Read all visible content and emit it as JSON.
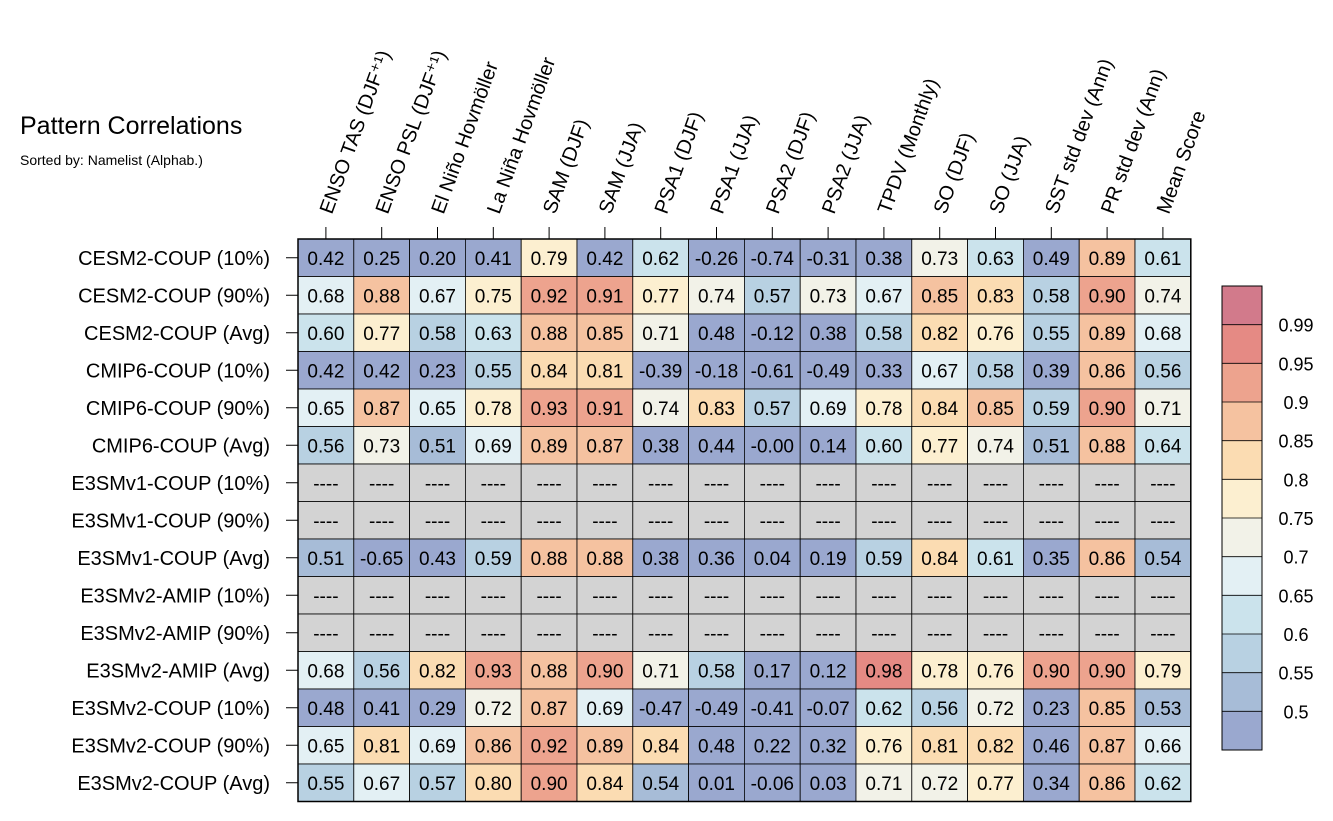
{
  "chart_data": {
    "type": "heatmap",
    "title": "Pattern Correlations",
    "subtitle": "Sorted by: Namelist (Alphab.)",
    "columns": [
      "ENSO TAS (DJF⁺¹)",
      "ENSO PSL (DJF⁺¹)",
      "El Niño Hovmöller",
      "La Niña Hovmöller",
      "SAM (DJF)",
      "SAM (JJA)",
      "PSA1 (DJF)",
      "PSA1 (JJA)",
      "PSA2 (DJF)",
      "PSA2 (JJA)",
      "TPDV (Monthly)",
      "SO (DJF)",
      "SO (JJA)",
      "SST std dev (Ann)",
      "PR std dev (Ann)",
      "Mean Score"
    ],
    "rows": [
      "CESM2-COUP (10%)",
      "CESM2-COUP (90%)",
      "CESM2-COUP (Avg)",
      "CMIP6-COUP (10%)",
      "CMIP6-COUP (90%)",
      "CMIP6-COUP (Avg)",
      "E3SMv1-COUP (10%)",
      "E3SMv1-COUP (90%)",
      "E3SMv1-COUP (Avg)",
      "E3SMv2-AMIP (10%)",
      "E3SMv2-AMIP (90%)",
      "E3SMv2-AMIP (Avg)",
      "E3SMv2-COUP (10%)",
      "E3SMv2-COUP (90%)",
      "E3SMv2-COUP (Avg)"
    ],
    "values": [
      [
        "0.42",
        "0.25",
        "0.20",
        "0.41",
        "0.79",
        "0.42",
        "0.62",
        "-0.26",
        "-0.74",
        "-0.31",
        "0.38",
        "0.73",
        "0.63",
        "0.49",
        "0.89",
        "0.61"
      ],
      [
        "0.68",
        "0.88",
        "0.67",
        "0.75",
        "0.92",
        "0.91",
        "0.77",
        "0.74",
        "0.57",
        "0.73",
        "0.67",
        "0.85",
        "0.83",
        "0.58",
        "0.90",
        "0.74"
      ],
      [
        "0.60",
        "0.77",
        "0.58",
        "0.63",
        "0.88",
        "0.85",
        "0.71",
        "0.48",
        "-0.12",
        "0.38",
        "0.58",
        "0.82",
        "0.76",
        "0.55",
        "0.89",
        "0.68"
      ],
      [
        "0.42",
        "0.42",
        "0.23",
        "0.55",
        "0.84",
        "0.81",
        "-0.39",
        "-0.18",
        "-0.61",
        "-0.49",
        "0.33",
        "0.67",
        "0.58",
        "0.39",
        "0.86",
        "0.56"
      ],
      [
        "0.65",
        "0.87",
        "0.65",
        "0.78",
        "0.93",
        "0.91",
        "0.74",
        "0.83",
        "0.57",
        "0.69",
        "0.78",
        "0.84",
        "0.85",
        "0.59",
        "0.90",
        "0.71"
      ],
      [
        "0.56",
        "0.73",
        "0.51",
        "0.69",
        "0.89",
        "0.87",
        "0.38",
        "0.44",
        "-0.00",
        "0.14",
        "0.60",
        "0.77",
        "0.74",
        "0.51",
        "0.88",
        "0.64"
      ],
      [
        null,
        null,
        null,
        null,
        null,
        null,
        null,
        null,
        null,
        null,
        null,
        null,
        null,
        null,
        null,
        null
      ],
      [
        null,
        null,
        null,
        null,
        null,
        null,
        null,
        null,
        null,
        null,
        null,
        null,
        null,
        null,
        null,
        null
      ],
      [
        "0.51",
        "-0.65",
        "0.43",
        "0.59",
        "0.88",
        "0.88",
        "0.38",
        "0.36",
        "0.04",
        "0.19",
        "0.59",
        "0.84",
        "0.61",
        "0.35",
        "0.86",
        "0.54"
      ],
      [
        null,
        null,
        null,
        null,
        null,
        null,
        null,
        null,
        null,
        null,
        null,
        null,
        null,
        null,
        null,
        null
      ],
      [
        null,
        null,
        null,
        null,
        null,
        null,
        null,
        null,
        null,
        null,
        null,
        null,
        null,
        null,
        null,
        null
      ],
      [
        "0.68",
        "0.56",
        "0.82",
        "0.93",
        "0.88",
        "0.90",
        "0.71",
        "0.58",
        "0.17",
        "0.12",
        "0.98",
        "0.78",
        "0.76",
        "0.90",
        "0.90",
        "0.79"
      ],
      [
        "0.48",
        "0.41",
        "0.29",
        "0.72",
        "0.87",
        "0.69",
        "-0.47",
        "-0.49",
        "-0.41",
        "-0.07",
        "0.62",
        "0.56",
        "0.72",
        "0.23",
        "0.85",
        "0.53"
      ],
      [
        "0.65",
        "0.81",
        "0.69",
        "0.86",
        "0.92",
        "0.89",
        "0.84",
        "0.48",
        "0.22",
        "0.32",
        "0.76",
        "0.81",
        "0.82",
        "0.46",
        "0.87",
        "0.66"
      ],
      [
        "0.55",
        "0.67",
        "0.57",
        "0.80",
        "0.90",
        "0.84",
        "0.54",
        "0.01",
        "-0.06",
        "0.03",
        "0.71",
        "0.72",
        "0.77",
        "0.34",
        "0.86",
        "0.62"
      ]
    ],
    "missing_label": "----",
    "colorbar": {
      "boundaries": [
        0.5,
        0.55,
        0.6,
        0.65,
        0.7,
        0.75,
        0.8,
        0.85,
        0.9,
        0.95,
        0.99
      ],
      "tick_labels": [
        "0.5",
        "0.55",
        "0.6",
        "0.65",
        "0.7",
        "0.75",
        "0.8",
        "0.85",
        "0.9",
        "0.95",
        "0.99"
      ],
      "colors": [
        "#9aa8cf",
        "#a7bcd7",
        "#b8d1e2",
        "#cbe3ec",
        "#e3f0f4",
        "#f2f2e8",
        "#fcefd0",
        "#fbdcb2",
        "#f5c2a0",
        "#eda38e",
        "#e58a84",
        "#d27a8b"
      ],
      "missing_color": "#d3d3d3",
      "placement": "right"
    }
  }
}
